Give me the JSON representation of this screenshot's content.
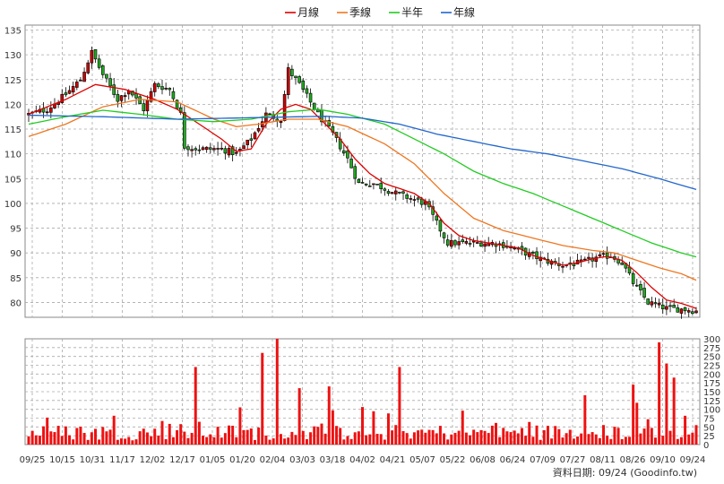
{
  "chart_data": {
    "type": "candlestick",
    "legend": [
      {
        "label": "月線",
        "color": "#dd0000"
      },
      {
        "label": "季線",
        "color": "#ee7722"
      },
      {
        "label": "半年",
        "color": "#22cc22"
      },
      {
        "label": "年線",
        "color": "#2266cc"
      }
    ],
    "price_axis": {
      "ylim": [
        77,
        136
      ],
      "ticks": [
        80,
        85,
        90,
        95,
        100,
        105,
        110,
        115,
        120,
        125,
        130,
        135
      ]
    },
    "volume_axis": {
      "ylim": [
        0,
        300
      ],
      "ticks": [
        0,
        25,
        50,
        75,
        100,
        125,
        150,
        175,
        200,
        225,
        250,
        275,
        300
      ]
    },
    "x_labels": [
      "09/25",
      "10/15",
      "10/31",
      "11/17",
      "12/02",
      "12/17",
      "01/05",
      "01/20",
      "02/04",
      "03/03",
      "03/18",
      "04/02",
      "04/21",
      "05/07",
      "05/22",
      "06/08",
      "06/24",
      "07/09",
      "07/27",
      "08/11",
      "08/26",
      "09/10",
      "09/24"
    ],
    "close_anchors": [
      [
        0,
        118
      ],
      [
        5,
        119
      ],
      [
        10,
        122
      ],
      [
        14,
        125
      ],
      [
        17,
        130.5
      ],
      [
        20,
        126
      ],
      [
        24,
        121
      ],
      [
        27,
        123
      ],
      [
        31,
        119
      ],
      [
        34,
        124
      ],
      [
        38,
        123
      ],
      [
        41,
        118
      ],
      [
        42,
        111.5
      ],
      [
        46,
        111
      ],
      [
        52,
        111
      ],
      [
        56,
        110
      ],
      [
        60,
        113
      ],
      [
        64,
        118
      ],
      [
        68,
        117
      ],
      [
        70,
        127
      ],
      [
        73,
        124
      ],
      [
        78,
        118
      ],
      [
        82,
        114
      ],
      [
        86,
        109
      ],
      [
        89,
        104
      ],
      [
        93,
        104
      ],
      [
        96,
        103
      ],
      [
        99,
        102
      ],
      [
        103,
        101
      ],
      [
        107,
        100
      ],
      [
        110,
        96
      ],
      [
        113,
        92
      ],
      [
        117,
        92
      ],
      [
        121,
        92
      ],
      [
        125,
        92
      ],
      [
        129,
        91.5
      ],
      [
        134,
        90
      ],
      [
        139,
        88.5
      ],
      [
        144,
        87.5
      ],
      [
        149,
        88
      ],
      [
        153,
        89
      ],
      [
        157,
        89.5
      ],
      [
        160,
        88
      ],
      [
        163,
        84
      ],
      [
        167,
        80
      ],
      [
        172,
        78.8
      ],
      [
        177,
        78.6
      ],
      [
        180,
        78.3
      ]
    ],
    "moving_averages": {
      "月線": [
        [
          0,
          118
        ],
        [
          10,
          121
        ],
        [
          18,
          124
        ],
        [
          26,
          123
        ],
        [
          34,
          121
        ],
        [
          40,
          119
        ],
        [
          46,
          116
        ],
        [
          52,
          113
        ],
        [
          56,
          110.5
        ],
        [
          60,
          111
        ],
        [
          64,
          116
        ],
        [
          68,
          119
        ],
        [
          72,
          120
        ],
        [
          76,
          119
        ],
        [
          80,
          116
        ],
        [
          84,
          113
        ],
        [
          88,
          109
        ],
        [
          92,
          106
        ],
        [
          96,
          104
        ],
        [
          100,
          103
        ],
        [
          104,
          102
        ],
        [
          108,
          100
        ],
        [
          112,
          96
        ],
        [
          116,
          93.5
        ],
        [
          120,
          92.5
        ],
        [
          124,
          92
        ],
        [
          128,
          91.5
        ],
        [
          132,
          91
        ],
        [
          136,
          89.5
        ],
        [
          140,
          88.5
        ],
        [
          144,
          87.5
        ],
        [
          148,
          88
        ],
        [
          152,
          88.8
        ],
        [
          156,
          89.3
        ],
        [
          160,
          88.5
        ],
        [
          164,
          86
        ],
        [
          168,
          83
        ],
        [
          172,
          80.5
        ],
        [
          176,
          79.8
        ],
        [
          180,
          78.8
        ]
      ],
      "季線": [
        [
          0,
          113.5
        ],
        [
          10,
          116
        ],
        [
          20,
          119.5
        ],
        [
          30,
          121
        ],
        [
          40,
          120.5
        ],
        [
          50,
          117
        ],
        [
          56,
          115.5
        ],
        [
          62,
          116
        ],
        [
          70,
          117
        ],
        [
          78,
          117
        ],
        [
          86,
          115.5
        ],
        [
          96,
          112
        ],
        [
          104,
          108
        ],
        [
          112,
          102
        ],
        [
          120,
          97
        ],
        [
          128,
          94.5
        ],
        [
          136,
          93
        ],
        [
          144,
          91.5
        ],
        [
          152,
          90.5
        ],
        [
          158,
          90
        ],
        [
          164,
          88.5
        ],
        [
          170,
          87
        ],
        [
          176,
          85.8
        ],
        [
          180,
          84.5
        ]
      ],
      "半年": [
        [
          0,
          116
        ],
        [
          10,
          117.5
        ],
        [
          20,
          118.8
        ],
        [
          30,
          118
        ],
        [
          40,
          117
        ],
        [
          50,
          116.5
        ],
        [
          60,
          117
        ],
        [
          70,
          118.5
        ],
        [
          78,
          119
        ],
        [
          86,
          118
        ],
        [
          96,
          116
        ],
        [
          104,
          113
        ],
        [
          112,
          110
        ],
        [
          120,
          106.5
        ],
        [
          128,
          104
        ],
        [
          136,
          102
        ],
        [
          144,
          99.5
        ],
        [
          152,
          97
        ],
        [
          160,
          94.5
        ],
        [
          168,
          92
        ],
        [
          176,
          90
        ],
        [
          180,
          89.2
        ]
      ],
      "年線": [
        [
          0,
          117.8
        ],
        [
          20,
          117.5
        ],
        [
          40,
          117
        ],
        [
          60,
          117.3
        ],
        [
          80,
          117.6
        ],
        [
          90,
          117.2
        ],
        [
          100,
          116
        ],
        [
          110,
          114
        ],
        [
          120,
          112.5
        ],
        [
          130,
          111
        ],
        [
          140,
          110
        ],
        [
          150,
          108.5
        ],
        [
          160,
          107
        ],
        [
          170,
          105
        ],
        [
          180,
          102.8
        ]
      ]
    },
    "annotation": "資料日期: 09/24 (Goodinfo.tw)"
  }
}
